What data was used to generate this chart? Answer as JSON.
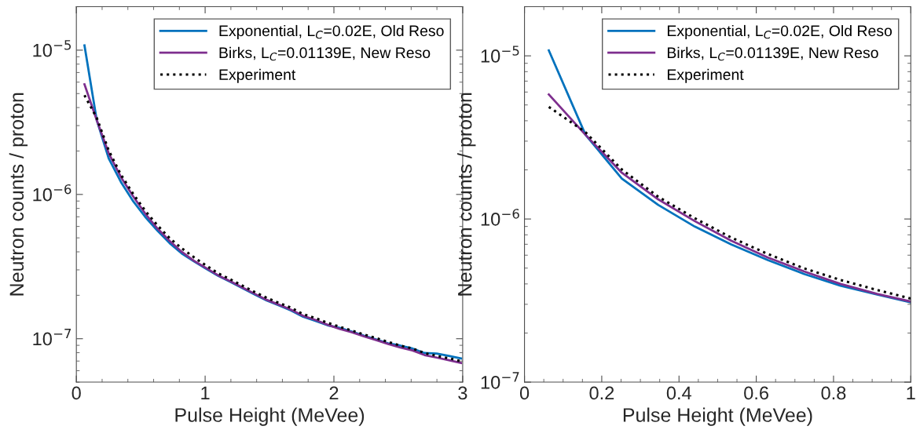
{
  "chart_data": [
    {
      "type": "line",
      "xlabel": "Pulse Height (MeVee)",
      "ylabel": "Neutron counts / proton",
      "log": "y",
      "legend": "top right",
      "grid": false,
      "x": [
        0.063,
        0.158,
        0.252,
        0.346,
        0.441,
        0.535,
        0.63,
        0.724,
        0.818,
        0.913,
        1.0,
        1.101,
        1.196,
        1.29,
        1.384,
        1.478,
        1.573,
        1.667,
        1.761,
        1.856,
        1.95,
        2.044,
        2.138,
        2.233,
        2.327,
        2.421,
        2.516,
        2.61,
        2.704,
        2.798,
        2.893,
        2.987
      ],
      "series": [
        {
          "name": "Exponential, L$_{C}$=0.02E, Old Reso",
          "color": "#0072bd",
          "line_style": "solid",
          "values": [
            1.08e-05,
            3.28e-06,
            1.77e-06,
            1.22e-06,
            8.98e-07,
            6.98e-07,
            5.6e-07,
            4.6e-07,
            3.9e-07,
            3.44e-07,
            3.08e-07,
            2.73e-07,
            2.48e-07,
            2.24e-07,
            2.03e-07,
            1.84e-07,
            1.7e-07,
            1.57e-07,
            1.42e-07,
            1.33e-07,
            1.24e-07,
            1.19e-07,
            1.12e-07,
            1.05e-07,
            9.9e-08,
            9.3e-08,
            8.96e-08,
            8.55e-08,
            7.96e-08,
            7.9e-08,
            7.6e-08,
            7.3e-08
          ]
        },
        {
          "name": "Birks, L$_{C}$=0.01139E, New Reso",
          "color": "#7e2f8e",
          "line_style": "solid",
          "values": [
            5.8e-06,
            3.28e-06,
            1.92e-06,
            1.32e-06,
            9.7e-07,
            7.36e-07,
            5.8e-07,
            4.77e-07,
            4e-07,
            3.47e-07,
            3.12e-07,
            2.75e-07,
            2.5e-07,
            2.26e-07,
            2.05e-07,
            1.86e-07,
            1.72e-07,
            1.59e-07,
            1.44e-07,
            1.35e-07,
            1.25e-07,
            1.17e-07,
            1.11e-07,
            1.04e-07,
            9.8e-08,
            9.2e-08,
            8.7e-08,
            8.3e-08,
            7.7e-08,
            7.4e-08,
            7.1e-08,
            6.8e-08
          ]
        },
        {
          "name": "Experiment",
          "color": "#000000",
          "line_style": "dotted",
          "values": [
            4.87e-06,
            3.4e-06,
            2.01e-06,
            1.37e-06,
            1.01e-06,
            7.7e-07,
            6.1e-07,
            4.98e-07,
            4.23e-07,
            3.67e-07,
            3.25e-07,
            2.84e-07,
            2.58e-07,
            2.33e-07,
            2.11e-07,
            1.92e-07,
            1.77e-07,
            1.64e-07,
            1.48e-07,
            1.39e-07,
            1.29e-07,
            1.21e-07,
            1.14e-07,
            1.07e-07,
            1.01e-07,
            9.5e-08,
            8.96e-08,
            8.55e-08,
            7.96e-08,
            7.6e-08,
            7.32e-08,
            6.98e-08
          ]
        }
      ],
      "xlim": [
        0,
        3
      ],
      "xticks": [
        0,
        1,
        2,
        3
      ],
      "ylim": [
        5e-08,
        2e-05
      ],
      "yticks": [
        {
          "value": 1e-07,
          "label": "10$^{−7}$"
        },
        {
          "value": 1e-06,
          "label": "10$^{−6}$"
        },
        {
          "value": 1e-05,
          "label": "10$^{−5}$"
        }
      ]
    },
    {
      "type": "line",
      "xlabel": "Pulse Height (MeVee)",
      "ylabel": "Neutron counts / proton",
      "log": "y",
      "legend": "top right",
      "grid": false,
      "x": [
        0.063,
        0.158,
        0.252,
        0.346,
        0.441,
        0.535,
        0.63,
        0.724,
        0.818,
        0.913,
        1.0
      ],
      "series": [
        {
          "name": "Exponential, L$_{C}$=0.02E, Old Reso",
          "color": "#0072bd",
          "line_style": "solid",
          "values": [
            1.08e-05,
            3.28e-06,
            1.77e-06,
            1.22e-06,
            8.98e-07,
            6.98e-07,
            5.6e-07,
            4.6e-07,
            3.9e-07,
            3.44e-07,
            3.08e-07
          ]
        },
        {
          "name": "Birks, L$_{C}$=0.01139E, New Reso",
          "color": "#7e2f8e",
          "line_style": "solid",
          "values": [
            5.8e-06,
            3.28e-06,
            1.92e-06,
            1.32e-06,
            9.7e-07,
            7.36e-07,
            5.8e-07,
            4.77e-07,
            4e-07,
            3.47e-07,
            3.12e-07
          ]
        },
        {
          "name": "Experiment",
          "color": "#000000",
          "line_style": "dotted",
          "values": [
            4.87e-06,
            3.4e-06,
            2.01e-06,
            1.37e-06,
            1.01e-06,
            7.7e-07,
            6.1e-07,
            4.98e-07,
            4.23e-07,
            3.67e-07,
            3.25e-07
          ]
        }
      ],
      "xlim": [
        0,
        1
      ],
      "xticks": [
        0,
        0.2,
        0.4,
        0.6,
        0.8,
        1
      ],
      "ylim": [
        1e-07,
        2e-05
      ],
      "yticks": [
        {
          "value": 1e-07,
          "label": "10$^{−7}$"
        },
        {
          "value": 1e-06,
          "label": "10$^{−6}$"
        },
        {
          "value": 1e-05,
          "label": "10$^{−5}$"
        }
      ]
    }
  ]
}
